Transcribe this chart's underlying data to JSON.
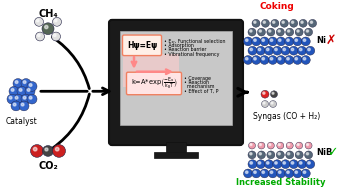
{
  "bg_color": "#ffffff",
  "ch4_text": "CH₄",
  "co2_text": "CO₂",
  "catalyst_text": "Catalyst",
  "box1_text": "Hψ=Eψ",
  "box1_border_color": "#f08060",
  "box1_bg": "#fff0e8",
  "bullet1": [
    "• Eₓᵣ, Functional selection",
    "• Adsorption",
    "• Reaction barrier",
    "• Vibrational frequency"
  ],
  "box2_border_color": "#f08060",
  "box2_bg": "#ffe4e4",
  "bullet2": [
    "• Coverage",
    "• Reaction",
    "  mechanism",
    "• Effect of T, P"
  ],
  "coking_text": "Coking",
  "coking_color": "#ee0000",
  "ni_text": "Ni",
  "ni_cross_color": "#cc0000",
  "syngas_text": "Syngas (CO + H₂)",
  "nib_text": "NiB",
  "nib_check_color": "#00bb00",
  "stability_text": "Increased Stability",
  "stability_color": "#00aa00",
  "blue_atom": "#2255bb",
  "blue_atom2": "#3366cc",
  "gray_atom": "#556677",
  "pink_atom": "#ee99aa"
}
